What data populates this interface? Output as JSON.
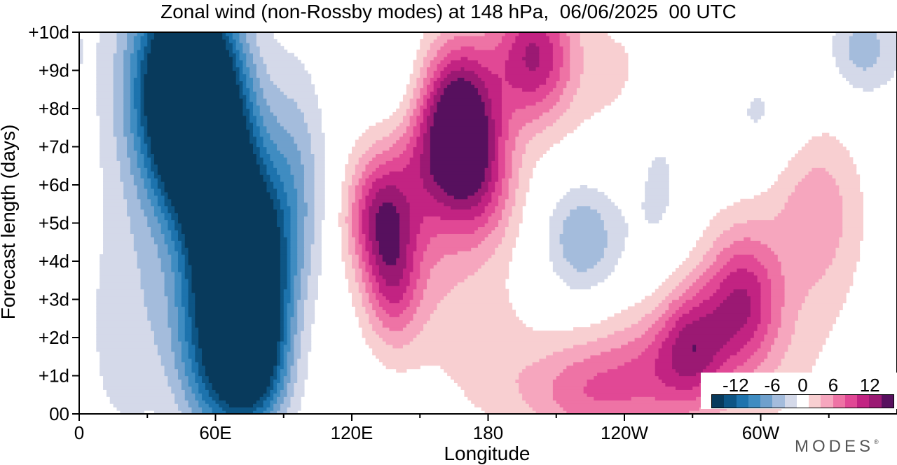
{
  "chart_data": {
    "type": "heatmap",
    "title": "Zonal wind (non-Rossby modes) at 148 hPa,  06/06/2025  00 UTC",
    "xlabel": "Longitude",
    "ylabel": "Forecast length (days)",
    "x_range": [
      0,
      360
    ],
    "y_range": [
      0,
      10
    ],
    "x_major_ticks": [
      {
        "value": 0,
        "label": "0"
      },
      {
        "value": 60,
        "label": "60E"
      },
      {
        "value": 120,
        "label": "120E"
      },
      {
        "value": 180,
        "label": "180"
      },
      {
        "value": 240,
        "label": "120W"
      },
      {
        "value": 300,
        "label": "60W"
      }
    ],
    "x_minor_ticks": [
      30,
      90,
      150,
      210,
      270,
      330
    ],
    "y_ticks": [
      {
        "value": 0,
        "label": "00"
      },
      {
        "value": 1,
        "label": "+1d"
      },
      {
        "value": 2,
        "label": "+2d"
      },
      {
        "value": 3,
        "label": "+3d"
      },
      {
        "value": 4,
        "label": "+4d"
      },
      {
        "value": 5,
        "label": "+5d"
      },
      {
        "value": 6,
        "label": "+6d"
      },
      {
        "value": 7,
        "label": "+7d"
      },
      {
        "value": 8,
        "label": "+8d"
      },
      {
        "value": 9,
        "label": "+9d"
      },
      {
        "value": 10,
        "label": "+10d"
      }
    ],
    "colorbar": {
      "levels": [
        -14,
        -12,
        -10,
        -8,
        -6,
        -4,
        -2,
        2,
        4,
        6,
        8,
        10,
        12,
        14
      ],
      "tick_labels": [
        {
          "value": -12,
          "label": "-12"
        },
        {
          "value": -6,
          "label": "-6"
        },
        {
          "value": 0,
          "label": "0"
        },
        {
          "value": 6,
          "label": "6"
        },
        {
          "value": 12,
          "label": "12"
        }
      ],
      "colors": [
        "#083a5c",
        "#0d5585",
        "#1d73ad",
        "#3f8cc1",
        "#6fa0cc",
        "#a4bcdc",
        "#d4d9e9",
        "#ffffff",
        "#f8cfd1",
        "#f6a6be",
        "#ee73a5",
        "#e14895",
        "#c22382",
        "#9b1973",
        "#57105e"
      ]
    },
    "features": [
      {
        "sign": "negative",
        "peak": -15,
        "lon_center_start": 55,
        "lon_center_end": 70,
        "drift_per_day": 0.0,
        "description_note": ""
      }
    ],
    "blobs": [
      {
        "lon": 48,
        "day": 9.2,
        "lon_w": 22,
        "day_w": 2.4,
        "amp": -18
      },
      {
        "lon": 52,
        "day": 7.6,
        "lon_w": 20,
        "day_w": 2.0,
        "amp": -14
      },
      {
        "lon": 60,
        "day": 6.0,
        "lon_w": 22,
        "day_w": 2.2,
        "amp": -12
      },
      {
        "lon": 70,
        "day": 4.6,
        "lon_w": 20,
        "day_w": 2.0,
        "amp": -13
      },
      {
        "lon": 76,
        "day": 3.2,
        "lon_w": 16,
        "day_w": 1.8,
        "amp": -12
      },
      {
        "lon": 58,
        "day": 2.4,
        "lon_w": 18,
        "day_w": 2.0,
        "amp": -10
      },
      {
        "lon": 78,
        "day": 1.6,
        "lon_w": 14,
        "day_w": 1.6,
        "amp": -10
      },
      {
        "lon": 68,
        "day": 0.6,
        "lon_w": 20,
        "day_w": 1.6,
        "amp": -9
      },
      {
        "lon": 30,
        "day": 7.5,
        "lon_w": 24,
        "day_w": 4.0,
        "amp": -3
      },
      {
        "lon": 95,
        "day": 6.2,
        "lon_w": 14,
        "day_w": 3.0,
        "amp": -5
      },
      {
        "lon": 20,
        "day": 2.0,
        "lon_w": 18,
        "day_w": 3.0,
        "amp": -3
      },
      {
        "lon": 345,
        "day": 9.6,
        "lon_w": 14,
        "day_w": 1.2,
        "amp": -5
      },
      {
        "lon": 222,
        "day": 4.6,
        "lon_w": 16,
        "day_w": 1.4,
        "amp": -6
      },
      {
        "lon": 255,
        "day": 6.5,
        "lon_w": 14,
        "day_w": 3.0,
        "amp": -3
      },
      {
        "lon": 140,
        "day": 8.5,
        "lon_w": 12,
        "day_w": 1.5,
        "amp": -2.5
      },
      {
        "lon": 300,
        "day": 7.8,
        "lon_w": 20,
        "day_w": 1.5,
        "amp": -2.5
      },
      {
        "lon": 168,
        "day": 8.0,
        "lon_w": 16,
        "day_w": 2.0,
        "amp": 12
      },
      {
        "lon": 200,
        "day": 9.4,
        "lon_w": 18,
        "day_w": 1.8,
        "amp": 12
      },
      {
        "lon": 160,
        "day": 6.8,
        "lon_w": 22,
        "day_w": 2.0,
        "amp": 8
      },
      {
        "lon": 132,
        "day": 5.2,
        "lon_w": 14,
        "day_w": 1.6,
        "amp": 10
      },
      {
        "lon": 138,
        "day": 3.4,
        "lon_w": 12,
        "day_w": 1.6,
        "amp": 7
      },
      {
        "lon": 178,
        "day": 6.0,
        "lon_w": 16,
        "day_w": 1.8,
        "amp": 6
      },
      {
        "lon": 150,
        "day": 4.4,
        "lon_w": 24,
        "day_w": 3.0,
        "amp": 4
      },
      {
        "lon": 222,
        "day": 0.6,
        "lon_w": 30,
        "day_w": 1.4,
        "amp": 7
      },
      {
        "lon": 270,
        "day": 1.8,
        "lon_w": 16,
        "day_w": 1.6,
        "amp": 9
      },
      {
        "lon": 292,
        "day": 3.0,
        "lon_w": 16,
        "day_w": 1.8,
        "amp": 9
      },
      {
        "lon": 252,
        "day": 1.2,
        "lon_w": 24,
        "day_w": 1.6,
        "amp": 5
      },
      {
        "lon": 325,
        "day": 5.4,
        "lon_w": 20,
        "day_w": 2.2,
        "amp": 5
      },
      {
        "lon": 300,
        "day": 2.2,
        "lon_w": 36,
        "day_w": 3.0,
        "amp": 3
      },
      {
        "lon": 245,
        "day": 8.8,
        "lon_w": 28,
        "day_w": 2.2,
        "amp": 2.6
      },
      {
        "lon": 180,
        "day": 1.8,
        "lon_w": 20,
        "day_w": 2.0,
        "amp": 2.5
      }
    ]
  },
  "brand": "MODES",
  "brand_mark": "®"
}
